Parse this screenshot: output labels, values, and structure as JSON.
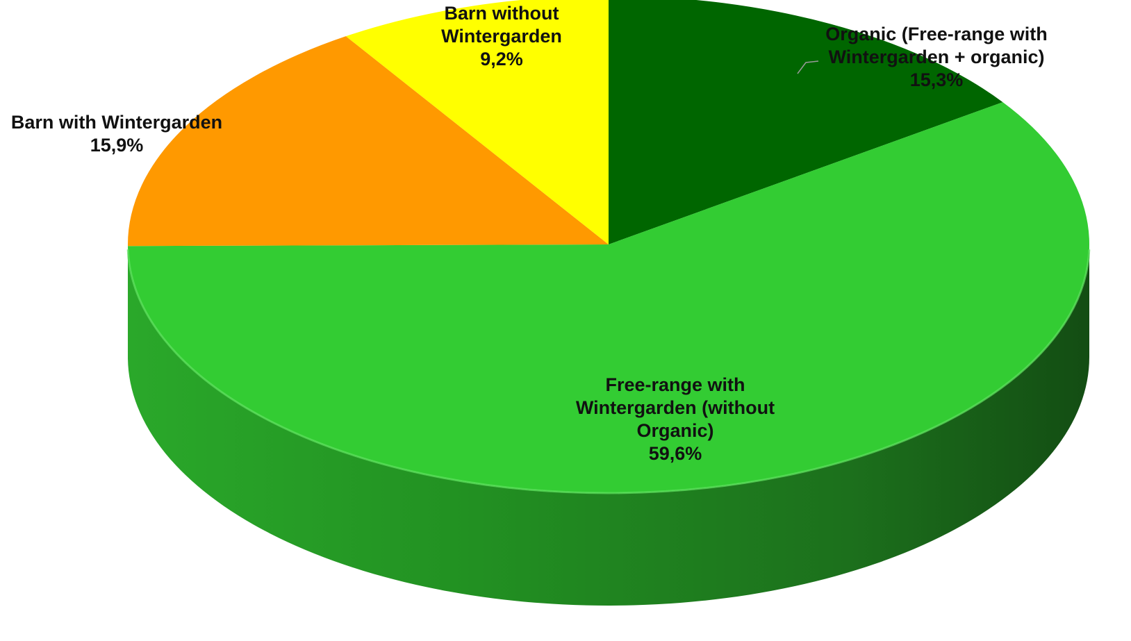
{
  "chart_data": {
    "type": "pie",
    "style": "3d",
    "title": "",
    "start_angle_deg": 0,
    "direction": "clockwise",
    "slices": [
      {
        "key": "organic",
        "label_lines": [
          "Organic (Free-range with",
          "Wintergarden + organic)"
        ],
        "value": 15.3,
        "value_label": "15,3%",
        "color": "#006600"
      },
      {
        "key": "free-range",
        "label_lines": [
          "Free-range with",
          "Wintergarden (without",
          "Organic)"
        ],
        "value": 59.6,
        "value_label": "59,6%",
        "color": "#33cc33"
      },
      {
        "key": "barn-with-wintergarden",
        "label_lines": [
          "Barn with Wintergarden"
        ],
        "value": 15.9,
        "value_label": "15,9%",
        "color": "#ff9900"
      },
      {
        "key": "barn-without-wintergarden",
        "label_lines": [
          "Barn without",
          "Wintergarden"
        ],
        "value": 9.2,
        "value_label": "9,2%",
        "color": "#ffff00"
      }
    ]
  }
}
